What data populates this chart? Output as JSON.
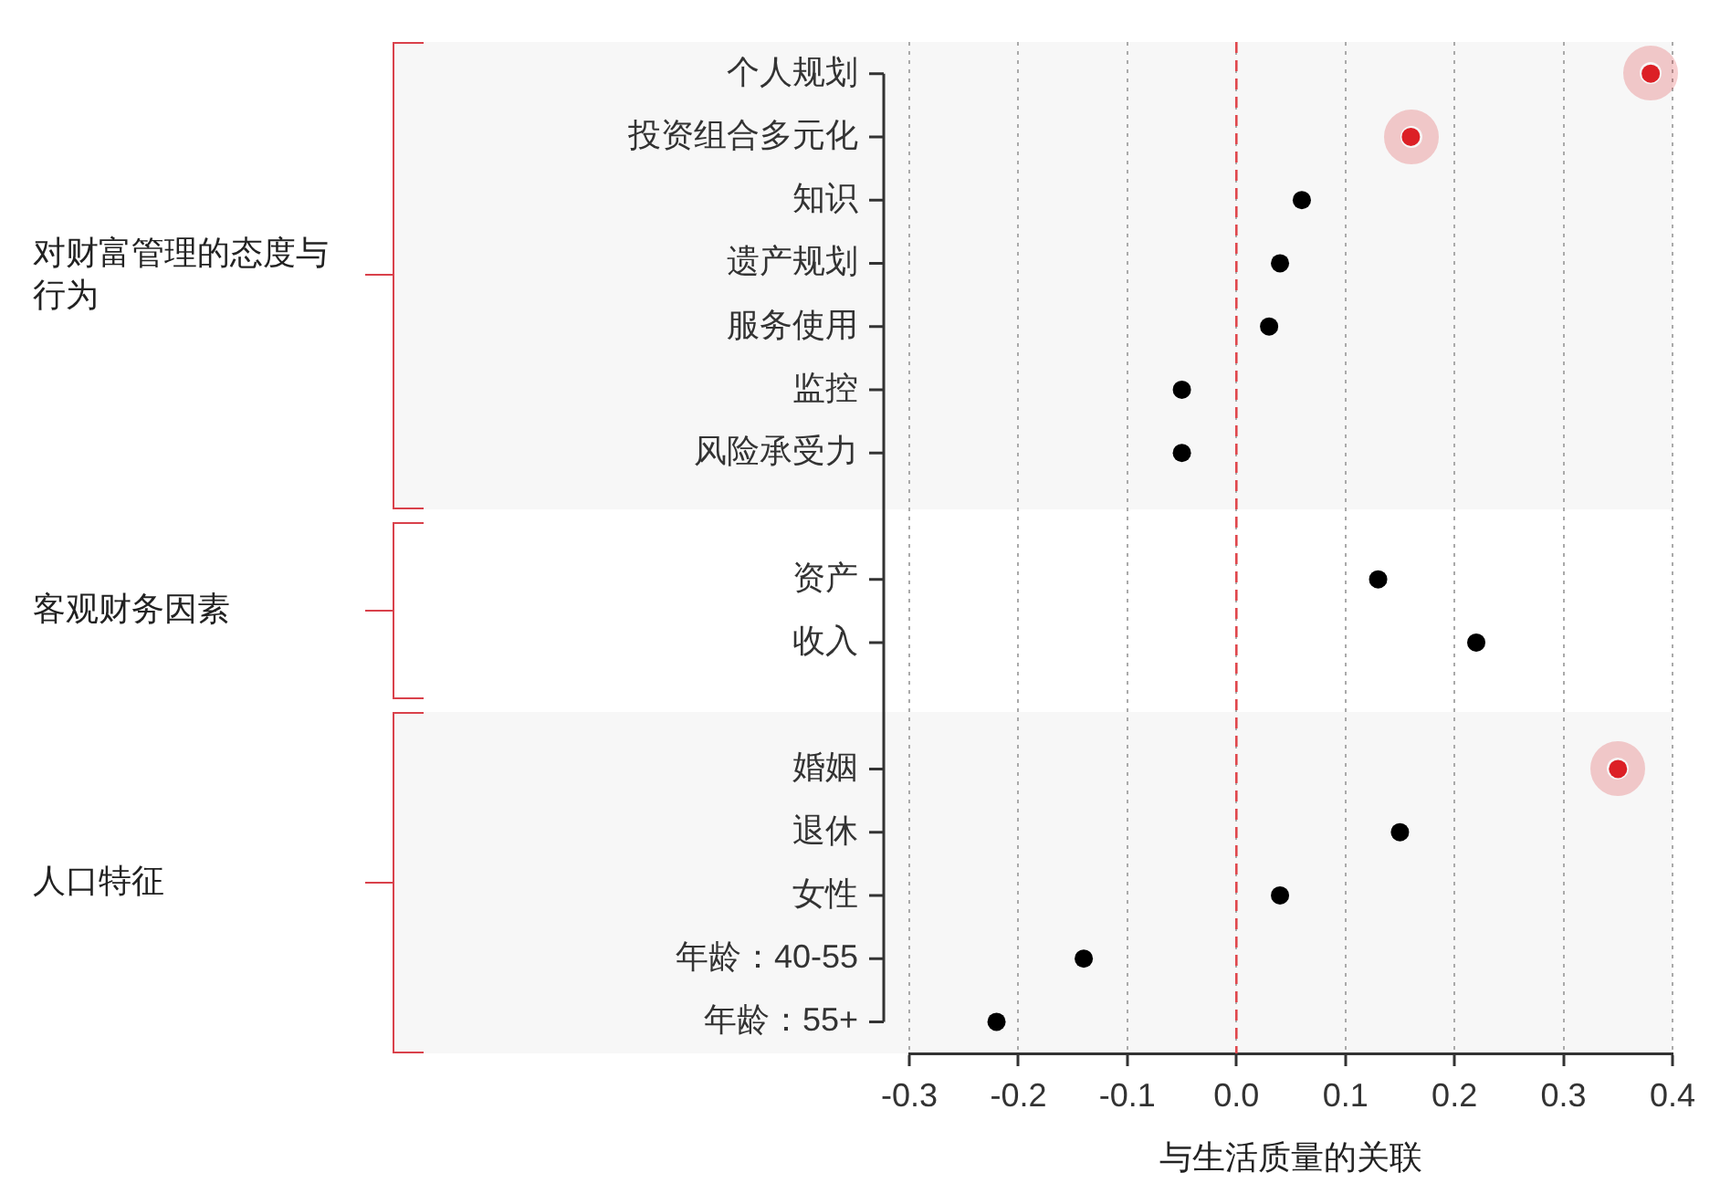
{
  "chart_data": {
    "type": "scatter",
    "orientation": "horizontal",
    "xlabel": "与生活质量的关联",
    "categories": [
      "个人规划",
      "投资组合多元化",
      "知识",
      "遗产规划",
      "服务使用",
      "监控",
      "风险承受力",
      null,
      "资产",
      "收入",
      null,
      "婚姻",
      "退休",
      "女性",
      "年龄：40-55",
      "年龄：55+"
    ],
    "series": [
      {
        "color": "#000000",
        "colors": [
          "#dc2026",
          "#dc2026",
          "#000000",
          "#000000",
          "#000000",
          "#000000",
          "#000000",
          null,
          "#000000",
          "#000000",
          null,
          "#dc2026",
          "#000000",
          "#000000",
          "#000000",
          "#000000"
        ],
        "values": [
          0.38,
          0.16,
          0.06,
          0.04,
          0.03,
          -0.05,
          -0.05,
          null,
          0.13,
          0.22,
          null,
          0.35,
          0.15,
          0.04,
          -0.14,
          -0.22
        ]
      }
    ],
    "xlim": [
      -0.3,
      0.4
    ],
    "xticks": [
      -0.3,
      -0.2,
      -0.1,
      {
        "value": 0,
        "label": "0.0"
      },
      0.1,
      0.2,
      0.3,
      0.4
    ],
    "grid": "x",
    "marker": "circle",
    "ref_lines": [
      {
        "axis": "x",
        "value": 0,
        "color": "#e0474c",
        "line_style": "dashed"
      }
    ],
    "annotations": [
      "对财富管理的态度与行为",
      "客观财务因素",
      "人口特征"
    ]
  }
}
